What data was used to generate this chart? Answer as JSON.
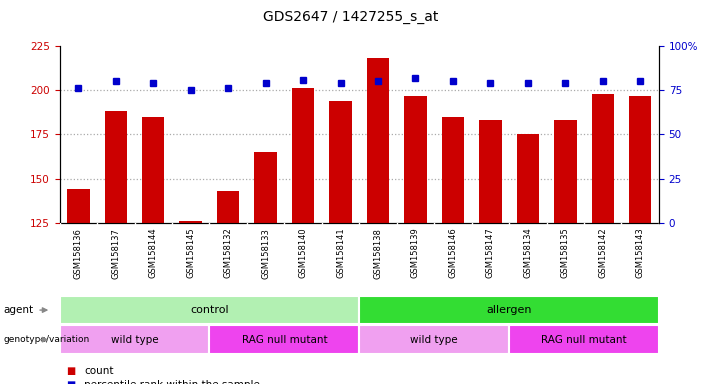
{
  "title": "GDS2647 / 1427255_s_at",
  "samples": [
    "GSM158136",
    "GSM158137",
    "GSM158144",
    "GSM158145",
    "GSM158132",
    "GSM158133",
    "GSM158140",
    "GSM158141",
    "GSM158138",
    "GSM158139",
    "GSM158146",
    "GSM158147",
    "GSM158134",
    "GSM158135",
    "GSM158142",
    "GSM158143"
  ],
  "counts": [
    144,
    188,
    185,
    126,
    143,
    165,
    201,
    194,
    218,
    197,
    185,
    183,
    175,
    183,
    198,
    197
  ],
  "percentile_ranks": [
    76,
    80,
    79,
    75,
    76,
    79,
    81,
    79,
    80,
    82,
    80,
    79,
    79,
    79,
    80,
    80
  ],
  "bar_color": "#cc0000",
  "dot_color": "#0000cc",
  "ylim_left": [
    125,
    225
  ],
  "ylim_right": [
    0,
    100
  ],
  "yticks_left": [
    125,
    150,
    175,
    200,
    225
  ],
  "yticks_right": [
    0,
    25,
    50,
    75,
    100
  ],
  "agent_labels": [
    {
      "text": "control",
      "start": 0,
      "end": 8,
      "color": "#b2f0b2"
    },
    {
      "text": "allergen",
      "start": 8,
      "end": 16,
      "color": "#33dd33"
    }
  ],
  "genotype_labels": [
    {
      "text": "wild type",
      "start": 0,
      "end": 4,
      "color": "#f0a0f0"
    },
    {
      "text": "RAG null mutant",
      "start": 4,
      "end": 8,
      "color": "#ee44ee"
    },
    {
      "text": "wild type",
      "start": 8,
      "end": 12,
      "color": "#f0a0f0"
    },
    {
      "text": "RAG null mutant",
      "start": 12,
      "end": 16,
      "color": "#ee44ee"
    }
  ],
  "legend_count_color": "#cc0000",
  "legend_dot_color": "#0000cc",
  "background_color": "#ffffff",
  "tick_label_color_left": "#cc0000",
  "tick_label_color_right": "#0000cc",
  "grid_color": "#888888",
  "xtick_bg_color": "#c8c8c8"
}
